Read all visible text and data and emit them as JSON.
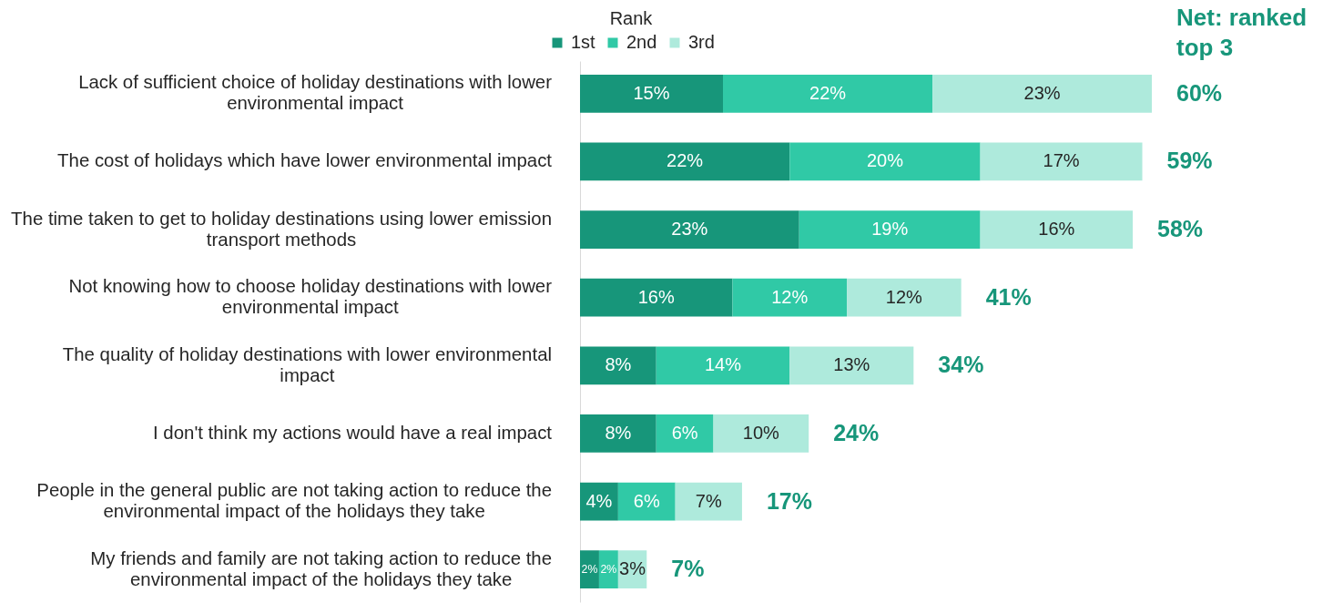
{
  "chart_data": {
    "type": "bar",
    "orientation": "horizontal",
    "stacked": true,
    "categories": [
      "Lack of sufficient choice of holiday destinations with lower environmental impact",
      "The cost of holidays which have lower environmental impact",
      "The time taken to get to holiday destinations using lower emission transport methods",
      "Not knowing how to choose holiday destinations with lower environmental impact",
      "The quality of holiday destinations with lower environmental impact",
      "I don't think my actions would have a real impact",
      "People in the general public are not taking action to reduce the environmental impact of the holidays they take",
      "My friends and family are not taking action to reduce the environmental impact of the holidays they take"
    ],
    "series": [
      {
        "name": "1st",
        "color": "#17967a",
        "values": [
          15,
          22,
          23,
          16,
          8,
          8,
          4,
          2
        ],
        "value_labels": [
          "15%",
          "22%",
          "23%",
          "16%",
          "8%",
          "8%",
          "4%",
          "2%"
        ]
      },
      {
        "name": "2nd",
        "color": "#30c9a6",
        "values": [
          22,
          20,
          19,
          12,
          14,
          6,
          6,
          2
        ],
        "value_labels": [
          "22%",
          "20%",
          "19%",
          "12%",
          "14%",
          "6%",
          "6%",
          "2%"
        ]
      },
      {
        "name": "3rd",
        "color": "#aeeadc",
        "values": [
          23,
          17,
          16,
          12,
          13,
          10,
          7,
          3
        ],
        "value_labels": [
          "23%",
          "17%",
          "16%",
          "12%",
          "13%",
          "10%",
          "7%",
          "3%"
        ]
      }
    ],
    "totals": [
      "60%",
      "59%",
      "58%",
      "41%",
      "34%",
      "24%",
      "17%",
      "7%"
    ],
    "annotations": [
      "Net: ranked top 3"
    ],
    "legend_title": "Rank",
    "legend": "top",
    "xlim": [
      0,
      60
    ],
    "tick_labels": "y"
  }
}
